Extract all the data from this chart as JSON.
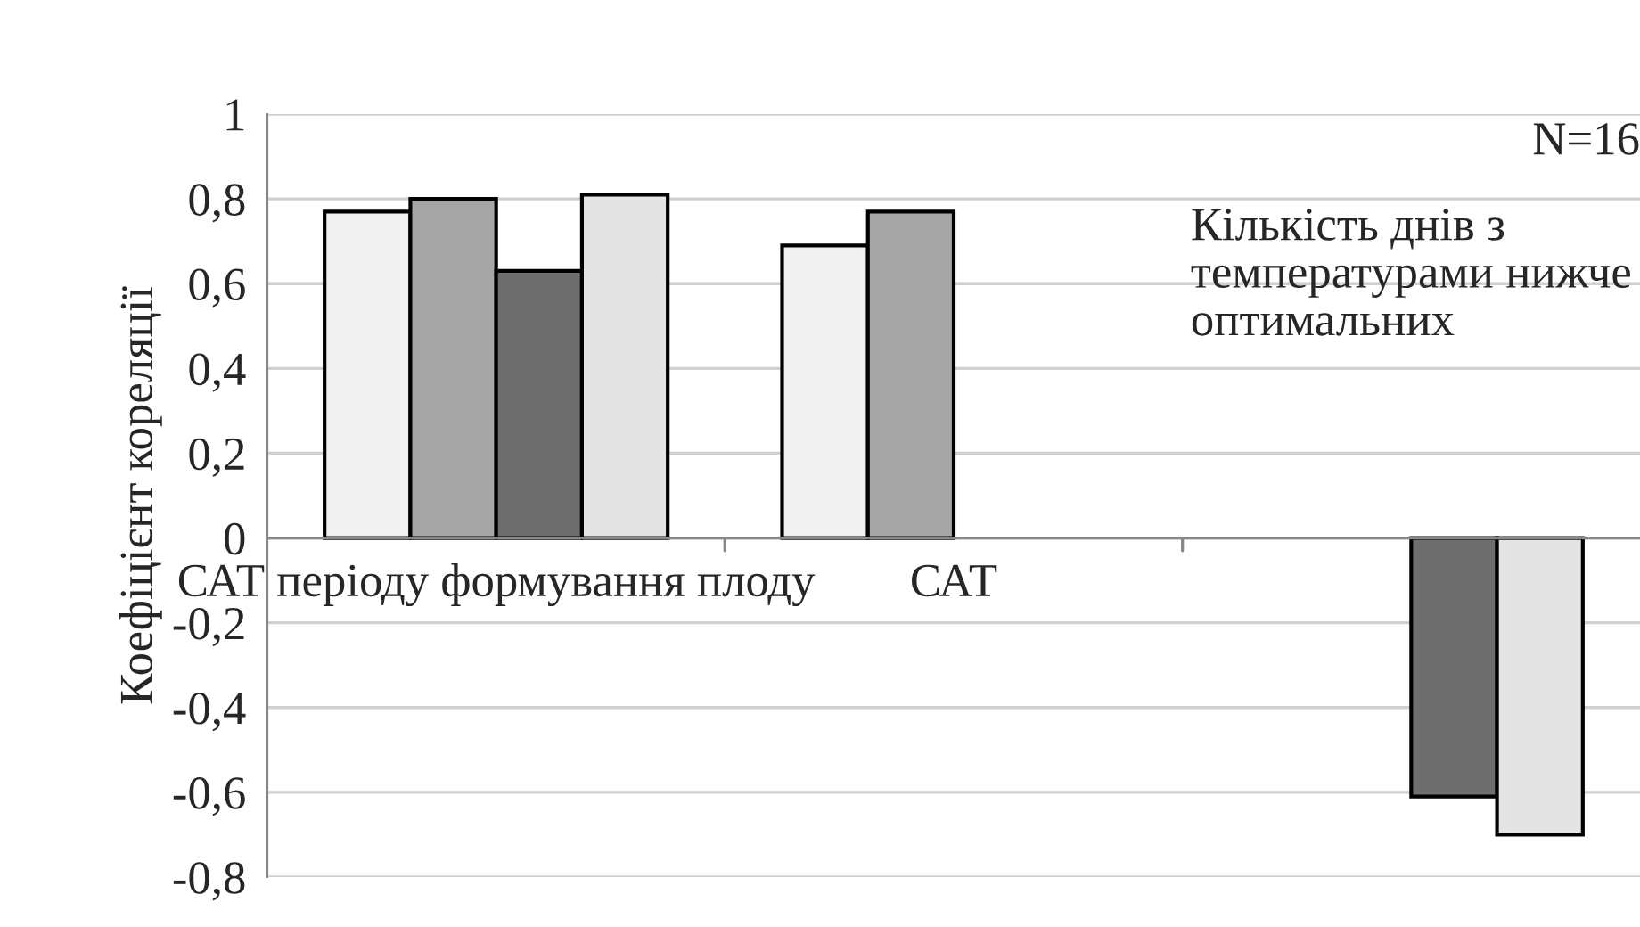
{
  "chart_data": {
    "type": "bar",
    "ylabel": "Коефіцієнт кореляції",
    "categories": [
      "САТ періоду формування плоду",
      "САТ",
      "Кількість днів з температурами нижче оптимальних"
    ],
    "series": [
      {
        "color": "#f0f0f0",
        "values": [
          0.77,
          0.69,
          null
        ]
      },
      {
        "color": "#a6a6a6",
        "values": [
          0.8,
          0.77,
          null
        ]
      },
      {
        "color": "#6e6e6e",
        "values": [
          0.63,
          null,
          -0.61
        ]
      },
      {
        "color": "#e4e4e4",
        "values": [
          0.81,
          null,
          -0.7
        ]
      }
    ],
    "ylim": [
      -0.8,
      1
    ],
    "yticks": [
      {
        "value": -0.8,
        "label": "-0,8"
      },
      {
        "value": -0.6,
        "label": "-0,6"
      },
      {
        "value": -0.4,
        "label": "-0,4"
      },
      {
        "value": -0.2,
        "label": "-0,2"
      },
      0,
      {
        "value": 0.2,
        "label": "0,2"
      },
      {
        "value": 0.4,
        "label": "0,4"
      },
      {
        "value": 0.6,
        "label": "0,6"
      },
      {
        "value": 0.8,
        "label": "0,8"
      },
      1
    ],
    "grid": "y",
    "legend": false,
    "annotations": [
      "N=16"
    ]
  }
}
